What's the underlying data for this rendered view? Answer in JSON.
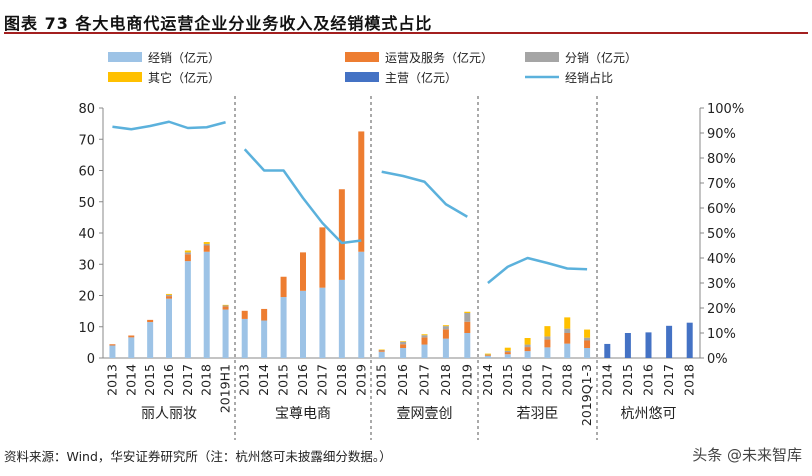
{
  "title": "图表 73 各大电商代运营企业分业务收入及经销模式占比",
  "source": "资料来源：Wind，华安证券研究所（注：杭州悠可未披露细分数据。）",
  "watermark": "头条 @未来智库",
  "chart_data": {
    "type": "bar",
    "stacked": true,
    "secondary_line": true,
    "legend": [
      {
        "name": "经销（亿元）",
        "color": "#9dc3e6",
        "kind": "bar"
      },
      {
        "name": "运营及服务（亿元）",
        "color": "#ed7d31",
        "kind": "bar"
      },
      {
        "name": "分销（亿元）",
        "color": "#a5a5a5",
        "kind": "bar"
      },
      {
        "name": "其它（亿元）",
        "color": "#ffc000",
        "kind": "bar"
      },
      {
        "name": "主营（亿元）",
        "color": "#4472c4",
        "kind": "bar"
      },
      {
        "name": "经销占比",
        "color": "#5bb1dc",
        "kind": "line"
      }
    ],
    "y_left": {
      "ticks": [
        "0",
        "10",
        "20",
        "30",
        "40",
        "50",
        "60",
        "70",
        "80"
      ],
      "min": 0,
      "max": 80
    },
    "y_right": {
      "ticks": [
        "0%",
        "10%",
        "20%",
        "30%",
        "40%",
        "50%",
        "60%",
        "70%",
        "80%",
        "90%",
        "100%"
      ],
      "min": 0,
      "max": 100
    },
    "companies": [
      {
        "name": "丽人丽妆",
        "categories": [
          "2013",
          "2014",
          "2015",
          "2016",
          "2017",
          "2018",
          "2019H1"
        ],
        "series": {
          "经销": [
            4,
            6.6,
            11.5,
            19,
            31,
            34,
            15.5
          ],
          "运营及服务": [
            0.4,
            0.6,
            0.7,
            0.8,
            2.2,
            2.0,
            1.0
          ],
          "分销": [
            0,
            0,
            0,
            0.4,
            0.6,
            0.5,
            0.3
          ],
          "其它": [
            0,
            0,
            0,
            0.3,
            0.6,
            0.6,
            0.2
          ]
        },
        "share": [
          92.5,
          91.5,
          92.8,
          94.5,
          92,
          92.3,
          94.3
        ]
      },
      {
        "name": "宝尊电商",
        "categories": [
          "2013",
          "2014",
          "2015",
          "2016",
          "2017",
          "2018",
          "2019"
        ],
        "series": {
          "经销": [
            12.5,
            12,
            19.5,
            21.5,
            22.5,
            25,
            34
          ],
          "运营及服务": [
            2.6,
            3.7,
            6.5,
            12.3,
            19.3,
            29,
            38.5
          ],
          "分销": [
            0,
            0,
            0,
            0,
            0,
            0,
            0
          ],
          "其它": [
            0,
            0,
            0,
            0,
            0,
            0,
            0
          ]
        },
        "share": [
          83.5,
          75,
          75,
          64,
          54,
          46,
          47
        ]
      },
      {
        "name": "壹网壹创",
        "categories": [
          "2015",
          "2016",
          "2017",
          "2018",
          "2019"
        ],
        "series": {
          "经销": [
            2.0,
            3.2,
            4.3,
            6.2,
            8.0
          ],
          "运营及服务": [
            0.4,
            1.2,
            2.3,
            3.0,
            3.6
          ],
          "分销": [
            0.2,
            0.8,
            0.7,
            1.0,
            2.8
          ],
          "其它": [
            0.1,
            0.2,
            0.3,
            0.3,
            0.4
          ]
        },
        "share": [
          74.5,
          72.8,
          70.5,
          61.5,
          56.5
        ]
      },
      {
        "name": "若羽臣",
        "categories": [
          "2014",
          "2015",
          "2016",
          "2017",
          "2018",
          "2019Q1-3"
        ],
        "series": {
          "经销": [
            0.7,
            1.2,
            2.2,
            3.4,
            4.6,
            3.2
          ],
          "运营及服务": [
            0.3,
            0.7,
            1.3,
            2.5,
            3.4,
            2.4
          ],
          "分销": [
            0.1,
            0.4,
            0.8,
            1.0,
            1.4,
            0.9
          ],
          "其它": [
            0.3,
            1.0,
            2.1,
            3.3,
            3.6,
            2.6
          ]
        },
        "share": [
          30,
          36.5,
          40,
          38,
          35.8,
          35.5
        ]
      },
      {
        "name": "杭州悠可",
        "categories": [
          "2014",
          "2015",
          "2016",
          "2017",
          "2018"
        ],
        "series": {
          "主营": [
            4.5,
            8.0,
            8.2,
            10.3,
            11.3
          ]
        },
        "share": []
      }
    ]
  }
}
